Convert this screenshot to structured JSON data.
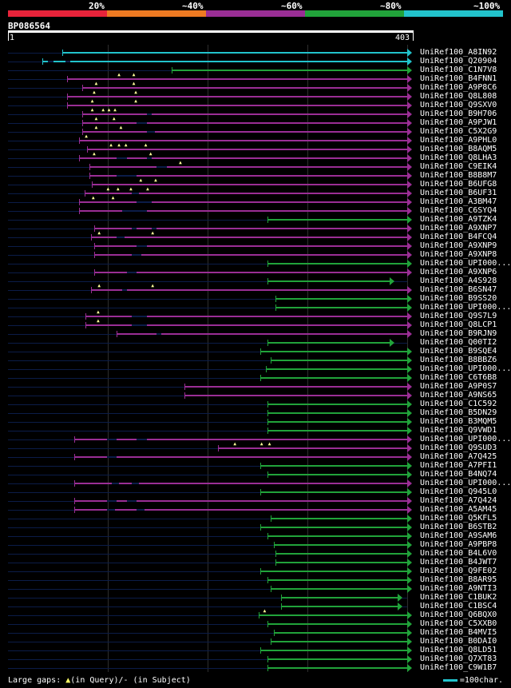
{
  "legend": [
    {
      "label": "20%",
      "color": "#e8233a"
    },
    {
      "label": "~40%",
      "color": "#ee7a22"
    },
    {
      "label": "~60%",
      "color": "#9a2e95"
    },
    {
      "label": "~80%",
      "color": "#21a33a"
    },
    {
      "label": "~100%",
      "color": "#22c3cc"
    }
  ],
  "query": {
    "id": "BP086564",
    "start": "1",
    "end": "403"
  },
  "footer": {
    "gaps_prefix": "Large gaps: ",
    "triangle": "▲",
    "gaps_suffix": "(in Query)/- (in Subject)",
    "scale_text": "=100char."
  },
  "colors": {
    "cyan": "#22c3cc",
    "magenta": "#9a2e95",
    "green": "#21a33a",
    "dark": "#0b1c48"
  },
  "hits": [
    {
      "id": "UniRef100_A8IN92",
      "color": "cyan",
      "start": 55,
      "end": 403,
      "arrow": true,
      "gaps": [],
      "tris": []
    },
    {
      "id": "UniRef100_Q20904",
      "color": "cyan",
      "start": 35,
      "end": 403,
      "arrow": true,
      "gaps": [
        [
          40,
          46
        ],
        [
          58,
          63
        ]
      ],
      "tris": []
    },
    {
      "id": "UniRef100_C1N7V8",
      "color": "green",
      "start": 165,
      "end": 403,
      "arrow": true,
      "gaps": [],
      "tris": []
    },
    {
      "id": "UniRef100_B4FNN1",
      "color": "magenta",
      "start": 60,
      "end": 403,
      "arrow": true,
      "gaps": [],
      "tris": [
        113,
        128
      ]
    },
    {
      "id": "UniRef100_A9P8C6",
      "color": "magenta",
      "start": 75,
      "end": 403,
      "arrow": true,
      "gaps": [],
      "tris": [
        90,
        128
      ]
    },
    {
      "id": "UniRef100_Q8L808",
      "color": "magenta",
      "start": 60,
      "end": 403,
      "arrow": true,
      "gaps": [],
      "tris": [
        88,
        130
      ]
    },
    {
      "id": "UniRef100_Q9SXV0",
      "color": "magenta",
      "start": 60,
      "end": 403,
      "arrow": true,
      "gaps": [],
      "tris": [
        86,
        130
      ]
    },
    {
      "id": "UniRef100_B9H706",
      "color": "magenta",
      "start": 75,
      "end": 403,
      "arrow": true,
      "gaps": [
        [
          140,
          145
        ]
      ],
      "tris": [
        86,
        97,
        103,
        109
      ]
    },
    {
      "id": "UniRef100_A9PJW1",
      "color": "magenta",
      "start": 75,
      "end": 403,
      "arrow": true,
      "gaps": [
        [
          130,
          140
        ]
      ],
      "tris": [
        90,
        108
      ]
    },
    {
      "id": "UniRef100_C5X2G9",
      "color": "magenta",
      "start": 75,
      "end": 403,
      "arrow": true,
      "gaps": [
        [
          140,
          148
        ]
      ],
      "tris": [
        90,
        115
      ]
    },
    {
      "id": "UniRef100_A9PHL0",
      "color": "magenta",
      "start": 72,
      "end": 403,
      "arrow": true,
      "gaps": [],
      "tris": [
        80
      ]
    },
    {
      "id": "UniRef100_B8AQM5",
      "color": "magenta",
      "start": 80,
      "end": 403,
      "arrow": true,
      "gaps": [],
      "tris": [
        105,
        113,
        120,
        140
      ]
    },
    {
      "id": "UniRef100_Q8LHA3",
      "color": "magenta",
      "start": 72,
      "end": 403,
      "arrow": true,
      "gaps": [
        [
          110,
          120
        ],
        [
          140,
          145
        ]
      ],
      "tris": [
        88,
        145
      ]
    },
    {
      "id": "UniRef100_C9EIK4",
      "color": "magenta",
      "start": 82,
      "end": 403,
      "arrow": true,
      "gaps": [
        [
          150,
          160
        ]
      ],
      "tris": [
        175
      ]
    },
    {
      "id": "UniRef100_B8B8M7",
      "color": "magenta",
      "start": 82,
      "end": 403,
      "arrow": true,
      "gaps": [
        [
          110,
          130
        ]
      ],
      "tris": []
    },
    {
      "id": "UniRef100_B6UFG8",
      "color": "magenta",
      "start": 85,
      "end": 403,
      "arrow": true,
      "gaps": [],
      "tris": [
        135,
        150
      ]
    },
    {
      "id": "UniRef100_B6UF31",
      "color": "magenta",
      "start": 77,
      "end": 403,
      "arrow": true,
      "gaps": [
        [
          125,
          132
        ]
      ],
      "tris": [
        102,
        112,
        125,
        142
      ]
    },
    {
      "id": "UniRef100_A3BM47",
      "color": "magenta",
      "start": 72,
      "end": 403,
      "arrow": true,
      "gaps": [
        [
          130,
          145
        ]
      ],
      "tris": [
        87,
        107
      ]
    },
    {
      "id": "UniRef100_C6SYQ4",
      "color": "magenta",
      "start": 72,
      "end": 403,
      "arrow": true,
      "gaps": [
        [
          115,
          140
        ]
      ],
      "tris": []
    },
    {
      "id": "UniRef100_A9TZK4",
      "color": "green",
      "start": 262,
      "end": 403,
      "arrow": true,
      "gaps": [],
      "tris": []
    },
    {
      "id": "UniRef100_A9XNP7",
      "color": "magenta",
      "start": 87,
      "end": 403,
      "arrow": true,
      "gaps": [
        [
          125,
          130
        ],
        [
          145,
          150
        ]
      ],
      "tris": []
    },
    {
      "id": "UniRef100_B4FCQ4",
      "color": "magenta",
      "start": 84,
      "end": 403,
      "arrow": true,
      "gaps": [
        [
          110,
          118
        ]
      ],
      "tris": [
        93,
        147
      ]
    },
    {
      "id": "UniRef100_A9XNP9",
      "color": "magenta",
      "start": 87,
      "end": 403,
      "arrow": true,
      "gaps": [
        [
          130,
          140
        ]
      ],
      "tris": []
    },
    {
      "id": "UniRef100_A9XNP8",
      "color": "magenta",
      "start": 87,
      "end": 403,
      "arrow": true,
      "gaps": [
        [
          125,
          135
        ]
      ],
      "tris": []
    },
    {
      "id": "UniRef100_UPI000...",
      "color": "green",
      "start": 262,
      "end": 403,
      "arrow": true,
      "gaps": [],
      "tris": []
    },
    {
      "id": "UniRef100_A9XNP6",
      "color": "magenta",
      "start": 87,
      "end": 403,
      "arrow": true,
      "gaps": [
        [
          120,
          130
        ]
      ],
      "tris": []
    },
    {
      "id": "UniRef100_A4S928",
      "color": "green",
      "start": 262,
      "end": 385,
      "arrow": true,
      "gaps": [],
      "tris": []
    },
    {
      "id": "UniRef100_B6SN47",
      "color": "magenta",
      "start": 84,
      "end": 403,
      "arrow": true,
      "gaps": [
        [
          115,
          120
        ]
      ],
      "tris": [
        93,
        147
      ]
    },
    {
      "id": "UniRef100_B9SS20",
      "color": "green",
      "start": 270,
      "end": 403,
      "arrow": true,
      "gaps": [],
      "tris": []
    },
    {
      "id": "UniRef100_UPI000...",
      "color": "green",
      "start": 270,
      "end": 403,
      "arrow": true,
      "gaps": [],
      "tris": []
    },
    {
      "id": "UniRef100_Q9S7L9",
      "color": "magenta",
      "start": 78,
      "end": 403,
      "arrow": true,
      "gaps": [
        [
          125,
          140
        ]
      ],
      "tris": [
        92
      ]
    },
    {
      "id": "UniRef100_Q8LCP1",
      "color": "magenta",
      "start": 78,
      "end": 403,
      "arrow": true,
      "gaps": [
        [
          125,
          140
        ]
      ],
      "tris": [
        92
      ]
    },
    {
      "id": "UniRef100_B9RJN9",
      "color": "magenta",
      "start": 110,
      "end": 403,
      "arrow": true,
      "gaps": [
        [
          150,
          155
        ]
      ],
      "tris": []
    },
    {
      "id": "UniRef100_Q00TI2",
      "color": "green",
      "start": 262,
      "end": 385,
      "arrow": true,
      "gaps": [],
      "tris": []
    },
    {
      "id": "UniRef100_B9SQE4",
      "color": "green",
      "start": 255,
      "end": 403,
      "arrow": true,
      "gaps": [],
      "tris": []
    },
    {
      "id": "UniRef100_B8BBZ6",
      "color": "green",
      "start": 265,
      "end": 403,
      "arrow": true,
      "gaps": [],
      "tris": []
    },
    {
      "id": "UniRef100_UPI000...",
      "color": "green",
      "start": 260,
      "end": 403,
      "arrow": true,
      "gaps": [],
      "tris": []
    },
    {
      "id": "UniRef100_C6T6B8",
      "color": "green",
      "start": 255,
      "end": 403,
      "arrow": true,
      "gaps": [],
      "tris": []
    },
    {
      "id": "UniRef100_A9P0S7",
      "color": "magenta",
      "start": 178,
      "end": 403,
      "arrow": true,
      "gaps": [],
      "tris": []
    },
    {
      "id": "UniRef100_A9NS65",
      "color": "magenta",
      "start": 178,
      "end": 403,
      "arrow": true,
      "gaps": [],
      "tris": []
    },
    {
      "id": "UniRef100_C1C592",
      "color": "green",
      "start": 262,
      "end": 403,
      "arrow": true,
      "gaps": [],
      "tris": []
    },
    {
      "id": "UniRef100_B5DN29",
      "color": "green",
      "start": 262,
      "end": 403,
      "arrow": true,
      "gaps": [],
      "tris": []
    },
    {
      "id": "UniRef100_B3MQM5",
      "color": "green",
      "start": 262,
      "end": 403,
      "arrow": true,
      "gaps": [],
      "tris": []
    },
    {
      "id": "UniRef100_Q9VWD1",
      "color": "green",
      "start": 262,
      "end": 403,
      "arrow": true,
      "gaps": [],
      "tris": []
    },
    {
      "id": "UniRef100_UPI000...",
      "color": "magenta",
      "start": 67,
      "end": 403,
      "arrow": true,
      "gaps": [
        [
          100,
          110
        ],
        [
          130,
          140
        ]
      ],
      "tris": []
    },
    {
      "id": "UniRef100_Q9SUD3",
      "color": "magenta",
      "start": 212,
      "end": 403,
      "arrow": true,
      "gaps": [],
      "tris": [
        230,
        257,
        265
      ]
    },
    {
      "id": "UniRef100_A7Q425",
      "color": "magenta",
      "start": 67,
      "end": 403,
      "arrow": true,
      "gaps": [
        [
          100,
          110
        ]
      ],
      "tris": []
    },
    {
      "id": "UniRef100_A7PFI1",
      "color": "green",
      "start": 255,
      "end": 403,
      "arrow": true,
      "gaps": [],
      "tris": []
    },
    {
      "id": "UniRef100_B4NQ74",
      "color": "green",
      "start": 262,
      "end": 403,
      "arrow": true,
      "gaps": [],
      "tris": []
    },
    {
      "id": "UniRef100_UPI000...",
      "color": "magenta",
      "start": 67,
      "end": 403,
      "arrow": true,
      "gaps": [
        [
          105,
          112
        ],
        [
          125,
          132
        ]
      ],
      "tris": []
    },
    {
      "id": "UniRef100_Q945L0",
      "color": "green",
      "start": 255,
      "end": 403,
      "arrow": true,
      "gaps": [],
      "tris": []
    },
    {
      "id": "UniRef100_A7Q424",
      "color": "magenta",
      "start": 67,
      "end": 403,
      "arrow": true,
      "gaps": [
        [
          100,
          110
        ],
        [
          120,
          130
        ]
      ],
      "tris": []
    },
    {
      "id": "UniRef100_A5AM45",
      "color": "magenta",
      "start": 67,
      "end": 403,
      "arrow": true,
      "gaps": [
        [
          100,
          108
        ],
        [
          130,
          138
        ]
      ],
      "tris": []
    },
    {
      "id": "UniRef100_Q5KFL5",
      "color": "green",
      "start": 265,
      "end": 403,
      "arrow": true,
      "gaps": [],
      "tris": []
    },
    {
      "id": "UniRef100_B6STB2",
      "color": "green",
      "start": 255,
      "end": 403,
      "arrow": true,
      "gaps": [],
      "tris": []
    },
    {
      "id": "UniRef100_A9SAM6",
      "color": "green",
      "start": 262,
      "end": 403,
      "arrow": true,
      "gaps": [],
      "tris": []
    },
    {
      "id": "UniRef100_A9PBP8",
      "color": "green",
      "start": 268,
      "end": 403,
      "arrow": true,
      "gaps": [],
      "tris": []
    },
    {
      "id": "UniRef100_B4L6V0",
      "color": "green",
      "start": 270,
      "end": 403,
      "arrow": true,
      "gaps": [],
      "tris": []
    },
    {
      "id": "UniRef100_B4JWT7",
      "color": "green",
      "start": 270,
      "end": 403,
      "arrow": true,
      "gaps": [],
      "tris": []
    },
    {
      "id": "UniRef100_Q9FE02",
      "color": "green",
      "start": 255,
      "end": 403,
      "arrow": true,
      "gaps": [],
      "tris": []
    },
    {
      "id": "UniRef100_B8AR95",
      "color": "green",
      "start": 262,
      "end": 403,
      "arrow": true,
      "gaps": [],
      "tris": []
    },
    {
      "id": "UniRef100_A9NTI3",
      "color": "green",
      "start": 265,
      "end": 403,
      "arrow": true,
      "gaps": [],
      "tris": []
    },
    {
      "id": "UniRef100_C1BUK2",
      "color": "green",
      "start": 276,
      "end": 393,
      "arrow": true,
      "gaps": [],
      "tris": []
    },
    {
      "id": "UniRef100_C1BSC4",
      "color": "green",
      "start": 276,
      "end": 393,
      "arrow": true,
      "gaps": [],
      "tris": []
    },
    {
      "id": "UniRef100_Q6BQX0",
      "color": "green",
      "start": 253,
      "end": 403,
      "arrow": true,
      "gaps": [],
      "tris": [
        260
      ]
    },
    {
      "id": "UniRef100_C5XXB0",
      "color": "green",
      "start": 262,
      "end": 403,
      "arrow": true,
      "gaps": [],
      "tris": []
    },
    {
      "id": "UniRef100_B4MVI5",
      "color": "green",
      "start": 268,
      "end": 403,
      "arrow": true,
      "gaps": [],
      "tris": []
    },
    {
      "id": "UniRef100_B0DAI0",
      "color": "green",
      "start": 265,
      "end": 403,
      "arrow": true,
      "gaps": [],
      "tris": []
    },
    {
      "id": "UniRef100_Q8LD51",
      "color": "green",
      "start": 255,
      "end": 403,
      "arrow": true,
      "gaps": [],
      "tris": []
    },
    {
      "id": "UniRef100_Q7XT83",
      "color": "green",
      "start": 262,
      "end": 403,
      "arrow": true,
      "gaps": [],
      "tris": []
    },
    {
      "id": "UniRef100_C9W1B7",
      "color": "green",
      "start": 262,
      "end": 403,
      "arrow": true,
      "gaps": [],
      "tris": []
    }
  ]
}
